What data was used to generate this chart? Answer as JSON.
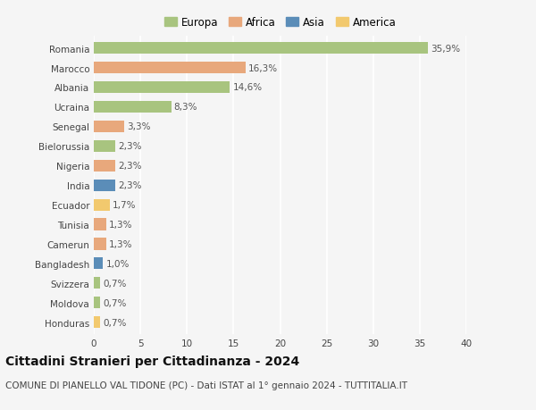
{
  "countries": [
    "Romania",
    "Marocco",
    "Albania",
    "Ucraina",
    "Senegal",
    "Bielorussia",
    "Nigeria",
    "India",
    "Ecuador",
    "Tunisia",
    "Camerun",
    "Bangladesh",
    "Svizzera",
    "Moldova",
    "Honduras"
  ],
  "values": [
    35.9,
    16.3,
    14.6,
    8.3,
    3.3,
    2.3,
    2.3,
    2.3,
    1.7,
    1.3,
    1.3,
    1.0,
    0.7,
    0.7,
    0.7
  ],
  "continents": [
    "Europa",
    "Africa",
    "Europa",
    "Europa",
    "Africa",
    "Europa",
    "Africa",
    "Asia",
    "America",
    "Africa",
    "Africa",
    "Asia",
    "Europa",
    "Europa",
    "America"
  ],
  "continent_colors": {
    "Europa": "#a8c47f",
    "Africa": "#e8a87c",
    "Asia": "#5b8db8",
    "America": "#f2c96e"
  },
  "legend_order": [
    "Europa",
    "Africa",
    "Asia",
    "America"
  ],
  "title": "Cittadini Stranieri per Cittadinanza - 2024",
  "subtitle": "COMUNE DI PIANELLO VAL TIDONE (PC) - Dati ISTAT al 1° gennaio 2024 - TUTTITALIA.IT",
  "xlim": [
    0,
    40
  ],
  "xticks": [
    0,
    5,
    10,
    15,
    20,
    25,
    30,
    35,
    40
  ],
  "background_color": "#f5f5f5",
  "grid_color": "#ffffff",
  "bar_height": 0.6,
  "title_fontsize": 10,
  "subtitle_fontsize": 7.5,
  "tick_fontsize": 7.5,
  "label_fontsize": 7.5,
  "legend_fontsize": 8.5
}
